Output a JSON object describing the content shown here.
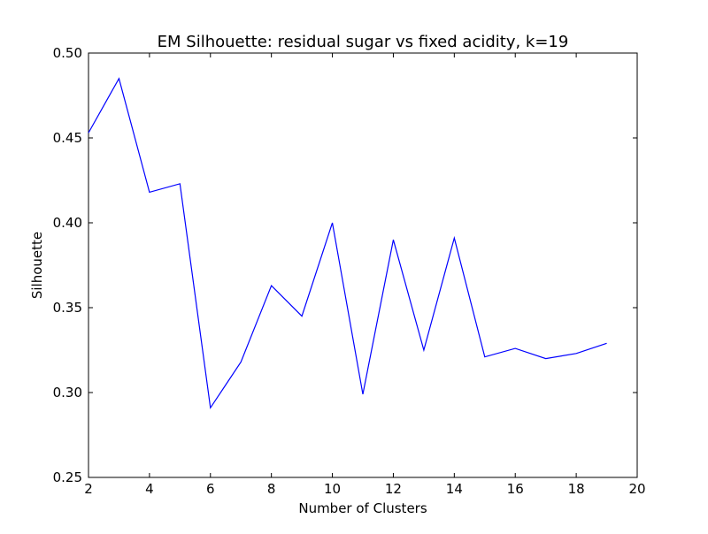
{
  "chart_data": {
    "type": "line",
    "title": "EM Silhouette: residual sugar vs fixed acidity, k=19",
    "xlabel": "Number of Clusters",
    "ylabel": "Silhouette",
    "xlim": [
      2,
      20
    ],
    "ylim": [
      0.25,
      0.5
    ],
    "xticks": [
      2,
      4,
      6,
      8,
      10,
      12,
      14,
      16,
      18,
      20
    ],
    "xtick_labels": [
      "2",
      "4",
      "6",
      "8",
      "10",
      "12",
      "14",
      "16",
      "18",
      "20"
    ],
    "yticks": [
      0.25,
      0.3,
      0.35,
      0.4,
      0.45,
      0.5
    ],
    "ytick_labels": [
      "0.25",
      "0.30",
      "0.35",
      "0.40",
      "0.45",
      "0.50"
    ],
    "grid": false,
    "line_color": "#0000ff",
    "series": [
      {
        "x": [
          2,
          3,
          4,
          5,
          6,
          7,
          8,
          9,
          10,
          11,
          12,
          13,
          14,
          15,
          16,
          17,
          18,
          19
        ],
        "values": [
          0.453,
          0.485,
          0.418,
          0.423,
          0.291,
          0.318,
          0.363,
          0.345,
          0.4,
          0.299,
          0.39,
          0.325,
          0.391,
          0.321,
          0.326,
          0.32,
          0.323,
          0.329
        ]
      }
    ]
  }
}
